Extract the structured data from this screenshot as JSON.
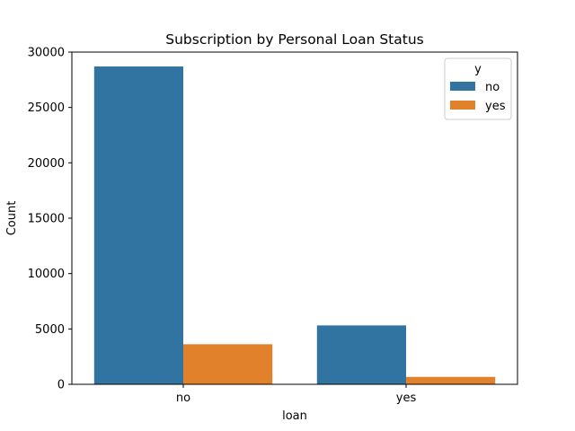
{
  "chart_data": {
    "type": "bar",
    "title": "Subscription by Personal Loan Status",
    "xlabel": "loan",
    "ylabel": "Count",
    "categories": [
      "no",
      "yes"
    ],
    "series": [
      {
        "name": "no",
        "values": [
          28700,
          5320
        ],
        "color": "#3274a1"
      },
      {
        "name": "yes",
        "values": [
          3620,
          670
        ],
        "color": "#e1812c"
      }
    ],
    "ylim": [
      0,
      30000
    ],
    "yticks": [
      0,
      5000,
      10000,
      15000,
      20000,
      25000,
      30000
    ],
    "ytick_labels": [
      "0",
      "5000",
      "10000",
      "15000",
      "20000",
      "25000",
      "30000"
    ],
    "legend": {
      "title": "y",
      "placement": "top-right"
    },
    "grid": false
  }
}
